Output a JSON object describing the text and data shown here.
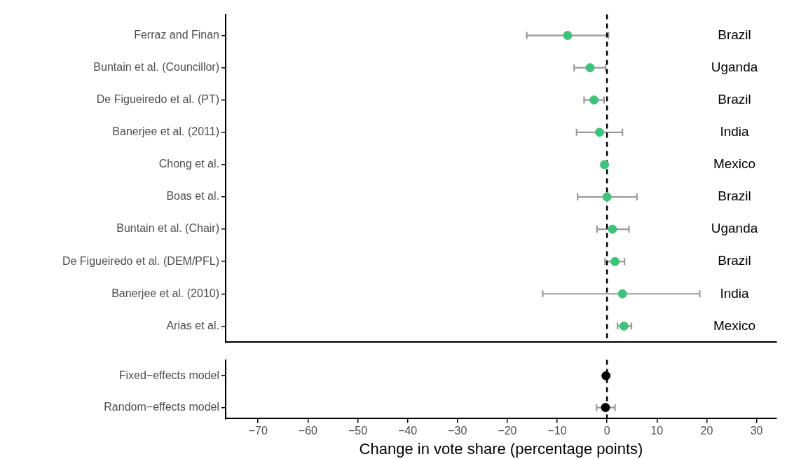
{
  "chart_data": [
    {
      "type": "scatter",
      "orientation": "horizontal",
      "categories": [
        "Ferraz and Finan",
        "Buntain et al. (Councillor)",
        "De Figueiredo et al. (PT)",
        "Banerjee et al. (2011)",
        "Chong et al.",
        "Boas et al.",
        "Buntain et al. (Chair)",
        "De Figueiredo et al. (DEM/PFL)",
        "Banerjee et al. (2010)",
        "Arias et al."
      ],
      "y2_categories": [
        "Brazil",
        "Uganda",
        "Brazil",
        "India",
        "Mexico",
        "Brazil",
        "Uganda",
        "Brazil",
        "India",
        "Mexico"
      ],
      "series": [
        {
          "color": "#3cc47a",
          "values": [
            -7.9,
            -3.4,
            -2.6,
            -1.5,
            -0.5,
            0.0,
            1.1,
            1.6,
            3.1,
            3.4
          ],
          "errors": [
            [
              -16.1,
              0.3
            ],
            [
              -6.6,
              -0.3
            ],
            [
              -4.6,
              -0.6
            ],
            [
              -6.1,
              3.1
            ],
            [
              -0.9,
              -0.1
            ],
            [
              -5.9,
              6.0
            ],
            [
              -2.0,
              4.4
            ],
            [
              -0.4,
              3.5
            ],
            [
              -12.9,
              18.6
            ],
            [
              2.1,
              4.9
            ]
          ]
        }
      ],
      "xlim": [
        -76.5,
        34
      ],
      "xticks": [
        -70,
        -60,
        -50,
        -40,
        -30,
        -20,
        -10,
        0,
        10,
        20,
        30
      ],
      "tick_labels": "y",
      "ref_lines": [
        {
          "axis": "x",
          "value": 0,
          "line_style": "dashed",
          "color": "#000000"
        }
      ],
      "grid": false,
      "legend": false,
      "marker": "circle"
    },
    {
      "type": "scatter",
      "orientation": "horizontal",
      "xlabel": "Change in vote share (percentage points)",
      "categories": [
        "Fixed−effects model",
        "Random−effects model"
      ],
      "series": [
        {
          "color": "#000000",
          "values": [
            -0.2,
            -0.3
          ],
          "errors": [
            null,
            [
              -2.1,
              1.6
            ]
          ]
        }
      ],
      "xlim": [
        -76.5,
        34
      ],
      "xticks": [
        -70,
        -60,
        -50,
        -40,
        -30,
        -20,
        -10,
        0,
        10,
        20,
        30
      ],
      "ref_lines": [
        {
          "axis": "x",
          "value": 0,
          "line_style": "dashed",
          "color": "#000000"
        }
      ],
      "grid": false,
      "legend": false,
      "marker": "circle"
    }
  ]
}
